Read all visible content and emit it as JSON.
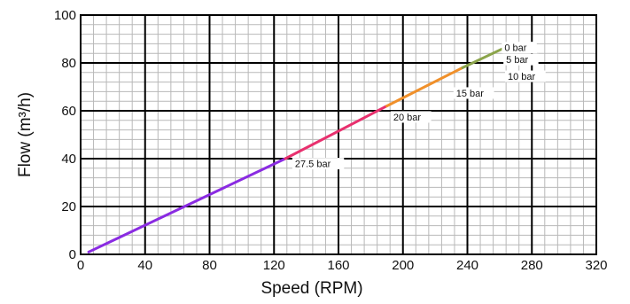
{
  "chart_data": {
    "type": "line",
    "title": "",
    "xlabel": "Speed (RPM)",
    "ylabel": "Flow (m³/h)",
    "xlim": [
      0,
      320
    ],
    "ylim": [
      0,
      100
    ],
    "x_ticks": [
      0,
      40,
      80,
      120,
      160,
      200,
      240,
      280,
      320
    ],
    "y_ticks": [
      0,
      20,
      40,
      60,
      80,
      100
    ],
    "x_tick_labels": [
      "0",
      "40",
      "80",
      "120",
      "160",
      "200",
      "240",
      "280",
      "320"
    ],
    "y_tick_labels": [
      "0",
      "20",
      "40",
      "60",
      "80",
      "100"
    ],
    "minor_x_step": 8,
    "minor_y_step": 4,
    "grid": true,
    "segments": [
      {
        "color": "#8a2be2",
        "x": [
          5,
          127
        ],
        "y": [
          1,
          40
        ]
      },
      {
        "color": "#e8306e",
        "x": [
          127,
          190
        ],
        "y": [
          40,
          62
        ]
      },
      {
        "color": "#f0902a",
        "x": [
          190,
          237
        ],
        "y": [
          62,
          78
        ]
      },
      {
        "color": "#8ba44a",
        "x": [
          237,
          262
        ],
        "y": [
          78,
          86
        ]
      }
    ],
    "pressure_labels": [
      {
        "text": "0 bar",
        "x": 263,
        "y": 85.5
      },
      {
        "text": "5 bar",
        "x": 264,
        "y": 80.5
      },
      {
        "text": "10 bar",
        "x": 265,
        "y": 73.5
      },
      {
        "text": "15 bar",
        "x": 233,
        "y": 66.5
      },
      {
        "text": "20 bar",
        "x": 194,
        "y": 56.5
      },
      {
        "text": "27.5 bar",
        "x": 133,
        "y": 37
      }
    ]
  }
}
